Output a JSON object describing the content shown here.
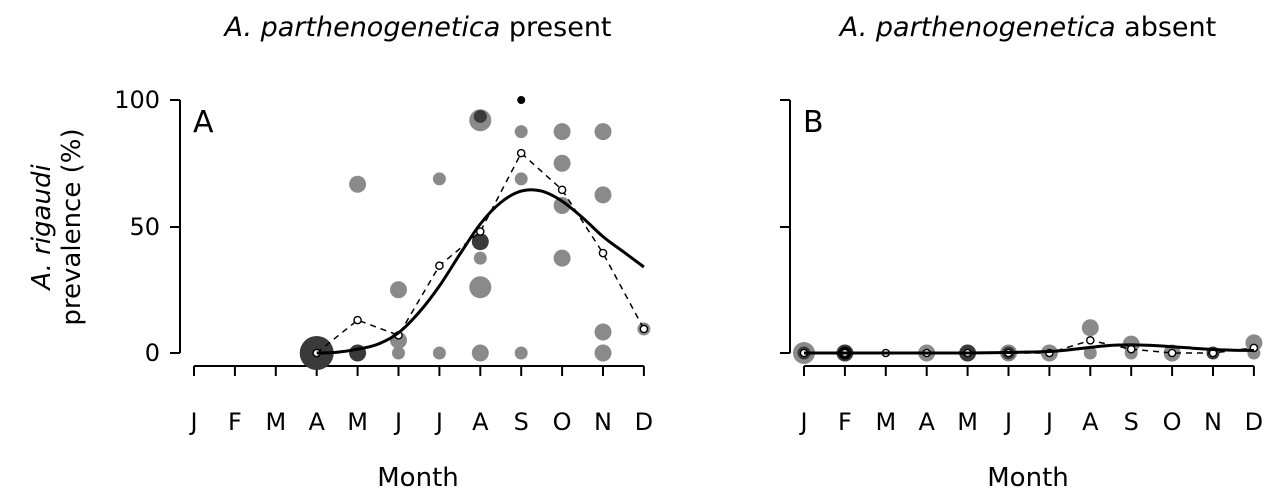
{
  "chart_data": [
    {
      "type": "scatter",
      "panel_label": "A",
      "title": {
        "italic": "A. parthenogenetica",
        "rest": " present"
      },
      "ylabel": {
        "italic": "A. rigaudi",
        "line2": "prevalence (%)"
      },
      "xlabel": "Month",
      "categories": [
        "J",
        "F",
        "M",
        "A",
        "M",
        "J",
        "J",
        "A",
        "S",
        "O",
        "N",
        "D"
      ],
      "yticks": [
        0,
        50,
        100
      ],
      "ylim": [
        0,
        100
      ],
      "points": [
        {
          "month": 4,
          "y": 0,
          "size": "xl",
          "shade": "dark"
        },
        {
          "month": 5,
          "y": 66.7,
          "size": "m",
          "shade": "grey"
        },
        {
          "month": 5,
          "y": 0,
          "size": "m",
          "shade": "dark"
        },
        {
          "month": 6,
          "y": 25,
          "size": "m",
          "shade": "grey"
        },
        {
          "month": 6,
          "y": 5,
          "size": "m",
          "shade": "grey"
        },
        {
          "month": 6,
          "y": 0,
          "size": "s",
          "shade": "grey"
        },
        {
          "month": 7,
          "y": 68.8,
          "size": "s",
          "shade": "grey"
        },
        {
          "month": 7,
          "y": 0,
          "size": "s",
          "shade": "grey"
        },
        {
          "month": 8,
          "y": 92,
          "size": "l",
          "shade": "grey"
        },
        {
          "month": 8,
          "y": 93.5,
          "size": "s",
          "shade": "dark"
        },
        {
          "month": 8,
          "y": 44,
          "size": "m",
          "shade": "dark"
        },
        {
          "month": 8,
          "y": 37.5,
          "size": "s",
          "shade": "grey"
        },
        {
          "month": 8,
          "y": 26,
          "size": "l",
          "shade": "grey"
        },
        {
          "month": 8,
          "y": 0,
          "size": "m",
          "shade": "grey"
        },
        {
          "month": 9,
          "y": 100,
          "size": "xs",
          "shade": "black"
        },
        {
          "month": 9,
          "y": 87.5,
          "size": "s",
          "shade": "grey"
        },
        {
          "month": 9,
          "y": 68.8,
          "size": "s",
          "shade": "grey"
        },
        {
          "month": 9,
          "y": 0,
          "size": "s",
          "shade": "grey"
        },
        {
          "month": 10,
          "y": 87.5,
          "size": "m",
          "shade": "grey"
        },
        {
          "month": 10,
          "y": 75,
          "size": "m",
          "shade": "grey"
        },
        {
          "month": 10,
          "y": 58.3,
          "size": "m",
          "shade": "grey"
        },
        {
          "month": 10,
          "y": 37.5,
          "size": "m",
          "shade": "grey"
        },
        {
          "month": 11,
          "y": 87.5,
          "size": "m",
          "shade": "grey"
        },
        {
          "month": 11,
          "y": 62.5,
          "size": "m",
          "shade": "grey"
        },
        {
          "month": 11,
          "y": 8.3,
          "size": "m",
          "shade": "grey"
        },
        {
          "month": 11,
          "y": 0,
          "size": "m",
          "shade": "grey"
        },
        {
          "month": 12,
          "y": 9.5,
          "size": "s",
          "shade": "grey"
        }
      ],
      "observed_mean": {
        "months": [
          4,
          5,
          6,
          7,
          8,
          9,
          10,
          11,
          12
        ],
        "values": [
          0,
          13,
          7,
          34.5,
          48,
          79,
          64.5,
          39.5,
          9.5
        ]
      },
      "fitted_curve": {
        "months": [
          4,
          4.5,
          5,
          5.5,
          6,
          6.5,
          7,
          7.5,
          8,
          8.5,
          9,
          9.5,
          10,
          10.5,
          11,
          11.5,
          12
        ],
        "values": [
          0,
          0.3,
          1.5,
          3.5,
          8,
          16,
          26.5,
          39,
          51,
          59.5,
          64,
          64,
          60,
          53.5,
          46,
          40,
          34
        ]
      }
    },
    {
      "type": "scatter",
      "panel_label": "B",
      "title": {
        "italic": "A. parthenogenetica",
        "rest": " absent"
      },
      "xlabel": "Month",
      "categories": [
        "J",
        "F",
        "M",
        "A",
        "M",
        "J",
        "J",
        "A",
        "S",
        "O",
        "N",
        "D"
      ],
      "ylim": [
        0,
        100
      ],
      "points": [
        {
          "month": 1,
          "y": 0,
          "size": "l",
          "shade": "grey"
        },
        {
          "month": 1,
          "y": 0,
          "size": "s",
          "shade": "dark"
        },
        {
          "month": 2,
          "y": 0,
          "size": "m",
          "shade": "dark"
        },
        {
          "month": 2,
          "y": 0,
          "size": "s",
          "shade": "black"
        },
        {
          "month": 3,
          "y": 0,
          "size": "xs",
          "shade": "grey"
        },
        {
          "month": 4,
          "y": 0,
          "size": "m",
          "shade": "grey"
        },
        {
          "month": 5,
          "y": 0,
          "size": "m",
          "shade": "dark"
        },
        {
          "month": 6,
          "y": 0,
          "size": "m",
          "shade": "grey"
        },
        {
          "month": 6,
          "y": 0,
          "size": "s",
          "shade": "dark"
        },
        {
          "month": 7,
          "y": 0,
          "size": "m",
          "shade": "grey"
        },
        {
          "month": 8,
          "y": 10,
          "size": "m",
          "shade": "grey"
        },
        {
          "month": 8,
          "y": 0,
          "size": "s",
          "shade": "grey"
        },
        {
          "month": 9,
          "y": 3.5,
          "size": "m",
          "shade": "grey"
        },
        {
          "month": 9,
          "y": 0,
          "size": "s",
          "shade": "grey"
        },
        {
          "month": 10,
          "y": 0,
          "size": "m",
          "shade": "grey"
        },
        {
          "month": 11,
          "y": 0,
          "size": "s",
          "shade": "dark"
        },
        {
          "month": 12,
          "y": 4,
          "size": "m",
          "shade": "grey"
        },
        {
          "month": 12,
          "y": 0,
          "size": "s",
          "shade": "grey"
        }
      ],
      "observed_mean": {
        "months": [
          1,
          2,
          3,
          4,
          5,
          6,
          7,
          8,
          9,
          10,
          11,
          12
        ],
        "values": [
          0,
          0,
          0,
          0,
          0,
          0,
          0,
          5,
          1.5,
          0,
          0,
          2
        ]
      },
      "fitted_curve": {
        "months": [
          1,
          2,
          3,
          4,
          5,
          6,
          7,
          7.5,
          8,
          8.5,
          9,
          9.5,
          10,
          10.5,
          11,
          11.5,
          12
        ],
        "values": [
          0,
          0,
          0,
          0,
          0,
          0.2,
          0.6,
          1.3,
          2.2,
          3,
          3.2,
          3,
          2.5,
          1.9,
          1.4,
          1.1,
          1
        ]
      }
    }
  ],
  "colors": {
    "grey": "#8a8a8a",
    "dark": "#3a3a3a",
    "black": "#000000"
  }
}
